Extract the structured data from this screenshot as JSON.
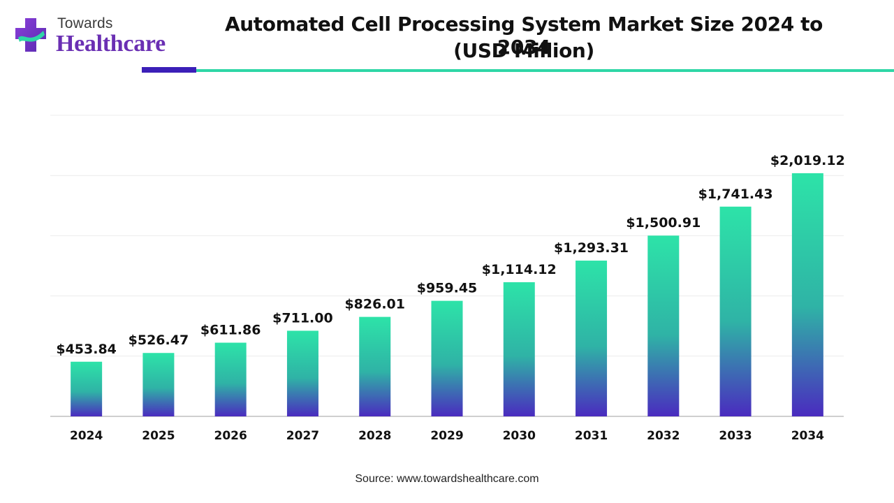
{
  "brand": {
    "line1": "Towards",
    "line2": "Healthcare",
    "colors": {
      "purple": "#6a2fb3",
      "teal": "#2ed6a6",
      "dark_purple": "#3b1fb8"
    }
  },
  "title_line1": "Automated Cell Processing System Market Size 2024 to 2034",
  "title_line2": "(USD Million)",
  "source": "Source: www.towardshealthcare.com",
  "chart_data": {
    "type": "bar",
    "title": "Automated Cell Processing System Market Size 2024 to 2034 (USD Million)",
    "xlabel": "",
    "ylabel": "",
    "categories": [
      "2024",
      "2025",
      "2026",
      "2027",
      "2028",
      "2029",
      "2030",
      "2031",
      "2032",
      "2033",
      "2034"
    ],
    "values": [
      453.84,
      526.47,
      611.86,
      711.0,
      826.01,
      959.45,
      1114.12,
      1293.31,
      1500.91,
      1741.43,
      2019.12
    ],
    "value_labels": [
      "$453.84",
      "$526.47",
      "$611.86",
      "$711.00",
      "$826.01",
      "$959.45",
      "$1,114.12",
      "$1,293.31",
      "$1,500.91",
      "$1,741.43",
      "$2,019.12"
    ],
    "ylim": [
      0,
      2500
    ],
    "grid": true,
    "legend": "none",
    "bar_gradient": {
      "top": "#2de3a8",
      "bottom": "#4a2bbf"
    },
    "gridline_color": "#ececec",
    "axis_color": "#bfbfbf"
  }
}
